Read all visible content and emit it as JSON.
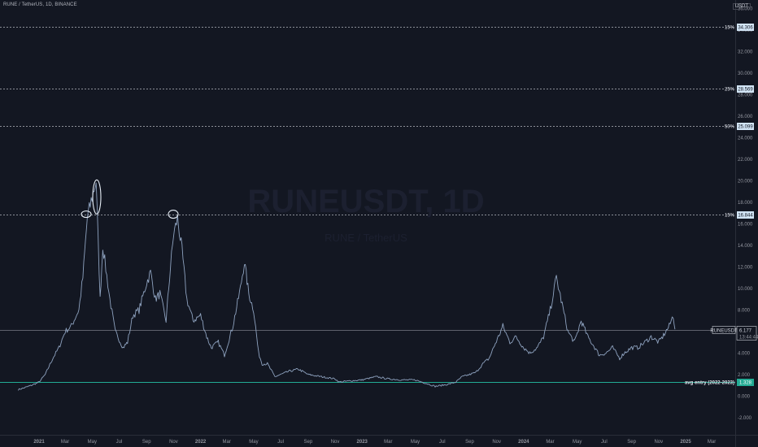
{
  "header": {
    "symbol_title": "RUNE / TetherUS, 1D, BINANCE",
    "currency": "USDT"
  },
  "watermark": {
    "symbol": "RUNEUSDT, 1D",
    "description": "RUNE / TetherUS"
  },
  "colors": {
    "background": "#131722",
    "price_line": "#8ea2bf",
    "level_line": "#d1d4dc",
    "entry_line": "#22ab94",
    "annotation": "#e6edf5",
    "axis_text": "#9598a1"
  },
  "chart_data": {
    "type": "line",
    "title": "RUNE / TetherUS, 1D, BINANCE",
    "xlabel": "",
    "ylabel": "",
    "ylim": [
      -3.6,
      36.8
    ],
    "y_ticks": [
      -2,
      0,
      2,
      4,
      6,
      8,
      10,
      12,
      14,
      16,
      18,
      20,
      22,
      24,
      26,
      28,
      30,
      32,
      34,
      36
    ],
    "x_ticks": [
      "2021",
      "Mar",
      "May",
      "Jul",
      "Sep",
      "Nov",
      "2022",
      "Mar",
      "May",
      "Jul",
      "Sep",
      "Nov",
      "2023",
      "Mar",
      "May",
      "Jul",
      "Sep",
      "Nov",
      "2024",
      "Mar",
      "May",
      "Jul",
      "Sep",
      "Nov",
      "2025",
      "Mar"
    ],
    "grid": false,
    "series": [
      {
        "name": "RUNEUSDT",
        "x": [
          "2020-11-15",
          "2020-12-01",
          "2020-12-15",
          "2021-01-01",
          "2021-01-15",
          "2021-02-01",
          "2021-02-15",
          "2021-03-01",
          "2021-03-15",
          "2021-04-01",
          "2021-04-10",
          "2021-04-20",
          "2021-05-01",
          "2021-05-10",
          "2021-05-19",
          "2021-05-25",
          "2021-06-10",
          "2021-06-22",
          "2021-07-10",
          "2021-07-20",
          "2021-08-01",
          "2021-08-15",
          "2021-09-01",
          "2021-09-10",
          "2021-09-21",
          "2021-10-01",
          "2021-10-15",
          "2021-10-25",
          "2021-11-01",
          "2021-11-10",
          "2021-11-20",
          "2021-12-01",
          "2021-12-15",
          "2022-01-01",
          "2022-01-15",
          "2022-01-25",
          "2022-02-10",
          "2022-02-24",
          "2022-03-15",
          "2022-04-01",
          "2022-04-10",
          "2022-04-20",
          "2022-05-01",
          "2022-05-12",
          "2022-05-20",
          "2022-06-01",
          "2022-06-18",
          "2022-07-01",
          "2022-07-20",
          "2022-08-10",
          "2022-09-01",
          "2022-10-01",
          "2022-11-01",
          "2022-11-10",
          "2022-12-01",
          "2023-01-01",
          "2023-02-01",
          "2023-03-01",
          "2023-04-01",
          "2023-05-01",
          "2023-06-01",
          "2023-06-15",
          "2023-07-01",
          "2023-07-15",
          "2023-08-01",
          "2023-08-15",
          "2023-09-01",
          "2023-09-15",
          "2023-10-01",
          "2023-10-15",
          "2023-10-25",
          "2023-11-05",
          "2023-11-15",
          "2023-12-01",
          "2023-12-15",
          "2024-01-01",
          "2024-01-15",
          "2024-02-01",
          "2024-02-15",
          "2024-03-01",
          "2024-03-15",
          "2024-03-28",
          "2024-04-10",
          "2024-04-25",
          "2024-05-10",
          "2024-05-25",
          "2024-06-10",
          "2024-06-20",
          "2024-07-05",
          "2024-07-20",
          "2024-08-05",
          "2024-08-15",
          "2024-09-01",
          "2024-09-15",
          "2024-10-01",
          "2024-10-15",
          "2024-11-01",
          "2024-11-10",
          "2024-11-25",
          "2024-12-04",
          "2024-12-08"
        ],
        "values": [
          0.6,
          0.8,
          1.0,
          1.3,
          2.0,
          3.5,
          4.5,
          6.0,
          6.5,
          8.0,
          11.0,
          16.5,
          18.5,
          20.0,
          9.0,
          14.0,
          9.0,
          6.0,
          4.5,
          5.0,
          7.5,
          8.0,
          10.5,
          11.5,
          9.0,
          9.5,
          7.0,
          12.0,
          15.0,
          16.5,
          13.5,
          9.0,
          7.0,
          7.5,
          5.5,
          4.5,
          5.0,
          3.8,
          6.5,
          10.0,
          12.5,
          9.5,
          8.0,
          4.0,
          3.0,
          3.0,
          1.8,
          2.0,
          2.3,
          2.5,
          2.0,
          1.8,
          1.6,
          1.3,
          1.4,
          1.5,
          1.8,
          1.6,
          1.5,
          1.5,
          1.1,
          0.9,
          1.0,
          1.1,
          1.3,
          1.8,
          2.0,
          2.2,
          3.0,
          3.5,
          4.5,
          5.5,
          6.5,
          5.0,
          5.5,
          4.5,
          4.0,
          4.5,
          5.5,
          8.0,
          11.0,
          8.5,
          6.0,
          5.0,
          7.0,
          5.5,
          4.5,
          3.8,
          4.0,
          4.5,
          3.5,
          4.0,
          4.5,
          4.5,
          5.0,
          5.5,
          5.0,
          5.5,
          6.5,
          7.5,
          6.2
        ]
      }
    ],
    "horizontal_levels": [
      {
        "label": "15%",
        "value": "34.306",
        "y": 34.306
      },
      {
        "label": "25%",
        "value": "28.569",
        "y": 28.569
      },
      {
        "label": "50%",
        "value": "25.099",
        "y": 25.099
      },
      {
        "label": "15%",
        "value": "16.844",
        "y": 16.844
      },
      {
        "label": "avg entry (2022-2023)",
        "value": "1.328",
        "y": 1.328
      }
    ],
    "current_price": {
      "symbol": "RUNEUSDT",
      "value": "6.177",
      "y": 6.177,
      "countdown": "13:44:44"
    }
  }
}
